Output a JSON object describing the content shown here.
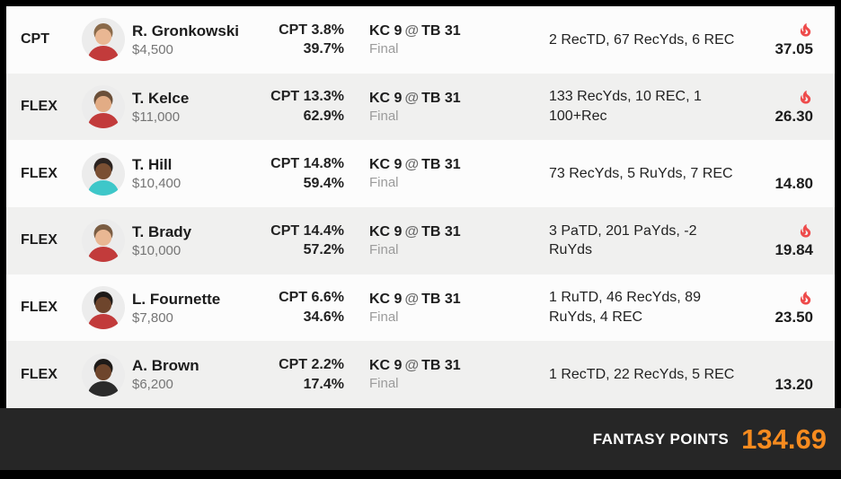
{
  "colors": {
    "fire_red": "#ee4b4b",
    "points_orange": "#f68b1f",
    "row_alt_gray": "#f0f0ef",
    "footer_dark": "#262626"
  },
  "table": {
    "rows": [
      {
        "position": "CPT",
        "player": {
          "name": "R. Gronkowski",
          "salary": "$4,500"
        },
        "pct": {
          "label": "CPT",
          "cpt": "3.8%",
          "own": "39.7%"
        },
        "game": {
          "away": "KC 9",
          "at": "@",
          "home": "TB 31",
          "status": "Final"
        },
        "stats_lines": [
          "2 RecTD, 67 RecYds, 6 REC"
        ],
        "points": "37.05",
        "hot": true,
        "avatar": {
          "skin": "#e9b793",
          "hair": "#8a6a4a",
          "jersey": "#c23b3b"
        }
      },
      {
        "position": "FLEX",
        "player": {
          "name": "T. Kelce",
          "salary": "$11,000"
        },
        "pct": {
          "label": "CPT",
          "cpt": "13.3%",
          "own": "62.9%"
        },
        "game": {
          "away": "KC 9",
          "at": "@",
          "home": "TB 31",
          "status": "Final"
        },
        "stats_lines": [
          "133 RecYds, 10 REC, 1",
          "100+Rec"
        ],
        "points": "26.30",
        "hot": true,
        "avatar": {
          "skin": "#e2ac85",
          "hair": "#6b4f39",
          "jersey": "#c23b3b"
        }
      },
      {
        "position": "FLEX",
        "player": {
          "name": "T. Hill",
          "salary": "$10,400"
        },
        "pct": {
          "label": "CPT",
          "cpt": "14.8%",
          "own": "59.4%"
        },
        "game": {
          "away": "KC 9",
          "at": "@",
          "home": "TB 31",
          "status": "Final"
        },
        "stats_lines": [
          "73 RecYds, 5 RuYds, 7 REC"
        ],
        "points": "14.80",
        "hot": false,
        "avatar": {
          "skin": "#7a4f33",
          "hair": "#2b2320",
          "jersey": "#3ec7c9"
        }
      },
      {
        "position": "FLEX",
        "player": {
          "name": "T. Brady",
          "salary": "$10,000"
        },
        "pct": {
          "label": "CPT",
          "cpt": "14.4%",
          "own": "57.2%"
        },
        "game": {
          "away": "KC 9",
          "at": "@",
          "home": "TB 31",
          "status": "Final"
        },
        "stats_lines": [
          "3 PaTD, 201 PaYds, -2",
          "RuYds"
        ],
        "points": "19.84",
        "hot": true,
        "avatar": {
          "skin": "#e9b793",
          "hair": "#7a5c42",
          "jersey": "#c23b3b"
        }
      },
      {
        "position": "FLEX",
        "player": {
          "name": "L. Fournette",
          "salary": "$7,800"
        },
        "pct": {
          "label": "CPT",
          "cpt": "6.6%",
          "own": "34.6%"
        },
        "game": {
          "away": "KC 9",
          "at": "@",
          "home": "TB 31",
          "status": "Final"
        },
        "stats_lines": [
          "1 RuTD, 46 RecYds, 89",
          "RuYds, 4 REC"
        ],
        "points": "23.50",
        "hot": true,
        "avatar": {
          "skin": "#6e452c",
          "hair": "#1e1a18",
          "jersey": "#c23b3b"
        }
      },
      {
        "position": "FLEX",
        "player": {
          "name": "A. Brown",
          "salary": "$6,200"
        },
        "pct": {
          "label": "CPT",
          "cpt": "2.2%",
          "own": "17.4%"
        },
        "game": {
          "away": "KC 9",
          "at": "@",
          "home": "TB 31",
          "status": "Final"
        },
        "stats_lines": [
          "1 RecTD, 22 RecYds, 5 REC"
        ],
        "points": "13.20",
        "hot": false,
        "avatar": {
          "skin": "#6e452c",
          "hair": "#1e1a18",
          "jersey": "#2b2b2b"
        }
      }
    ]
  },
  "footer": {
    "label": "FANTASY POINTS",
    "value": "134.69"
  }
}
